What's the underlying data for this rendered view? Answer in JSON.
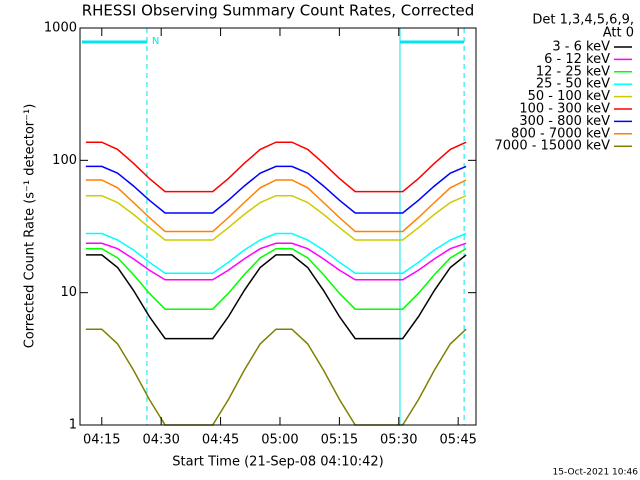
{
  "chart_data": {
    "type": "line",
    "title": "RHESSI Observing Summary Count Rates, Corrected",
    "xlabel": "Start Time (21-Sep-08 04:10:42)",
    "ylabel": "Corrected Count Rate (s⁻¹ detector⁻¹)",
    "legend_header": [
      "Det 1,3,4,5,6,9,",
      "Att 0"
    ],
    "legend_position": "outside-right",
    "timestamp": "15-Oct-2021 10:46",
    "log_y": true,
    "xlim": [
      9.5,
      109.5
    ],
    "ylim": [
      1,
      1000
    ],
    "xticks": [
      {
        "value": 15,
        "label": "04:15"
      },
      {
        "value": 30,
        "label": "04:30"
      },
      {
        "value": 45,
        "label": "04:45"
      },
      {
        "value": 60,
        "label": "05:00"
      },
      {
        "value": 75,
        "label": "05:15"
      },
      {
        "value": 90,
        "label": "05:30"
      },
      {
        "value": 105,
        "label": "05:45"
      }
    ],
    "yticks": [
      1,
      10,
      100,
      1000
    ],
    "night_intervals": [
      {
        "start": 10,
        "end": 26.4,
        "label": "N"
      },
      {
        "start": 90.3,
        "end": 106.5
      }
    ],
    "markers": [
      {
        "x": 26.4,
        "style": "dashed"
      },
      {
        "x": 90.3,
        "style": "solid"
      },
      {
        "x": 106.5,
        "style": "dashed"
      }
    ],
    "marker_color": "#00e5ee",
    "x": [
      11,
      15,
      19,
      23,
      27,
      31,
      35,
      39,
      43,
      47,
      51,
      55,
      59,
      63,
      67,
      71,
      75,
      79,
      83,
      87,
      91,
      95,
      99,
      103,
      107
    ],
    "series": [
      {
        "name": "3 - 6 keV",
        "color": "#000000",
        "values": [
          19.3,
          19.3,
          15.5,
          10.4,
          6.6,
          4.5,
          4.5,
          4.5,
          4.5,
          6.6,
          10.4,
          15.5,
          19.3,
          19.3,
          15.5,
          10.4,
          6.6,
          4.5,
          4.5,
          4.5,
          4.5,
          6.6,
          10.4,
          15.5,
          19.3
        ]
      },
      {
        "name": "6 - 12 keV",
        "color": "#ff00ff",
        "values": [
          23.6,
          23.6,
          21.5,
          18,
          14.8,
          12.5,
          12.5,
          12.5,
          12.5,
          14.8,
          18,
          21.5,
          23.6,
          23.6,
          21.5,
          18,
          14.8,
          12.5,
          12.5,
          12.5,
          12.5,
          14.8,
          18,
          21.5,
          23.6
        ]
      },
      {
        "name": "12 - 25 keV",
        "color": "#00ff00",
        "values": [
          21.5,
          21.5,
          18.3,
          13.7,
          9.9,
          7.5,
          7.5,
          7.5,
          7.5,
          9.9,
          13.7,
          18.3,
          21.5,
          21.5,
          18.3,
          13.7,
          9.9,
          7.5,
          7.5,
          7.5,
          7.5,
          9.9,
          13.7,
          18.3,
          21.5
        ]
      },
      {
        "name": "25 - 50 keV",
        "color": "#00ffff",
        "values": [
          28,
          28,
          25,
          21,
          17,
          14,
          14,
          14,
          14,
          17,
          21,
          25,
          28,
          28,
          25,
          21,
          17,
          14,
          14,
          14,
          14,
          17,
          21,
          25,
          28
        ]
      },
      {
        "name": "50 - 100 keV",
        "color": "#cccc00",
        "values": [
          54,
          54,
          48,
          39,
          31,
          25,
          25,
          25,
          25,
          31,
          39,
          48,
          54,
          54,
          48,
          39,
          31,
          25,
          25,
          25,
          25,
          31,
          39,
          48,
          54
        ]
      },
      {
        "name": "100 - 300 keV",
        "color": "#ff0000",
        "values": [
          137,
          137,
          121,
          95,
          73,
          58,
          58,
          58,
          58,
          73,
          95,
          121,
          137,
          137,
          121,
          95,
          73,
          58,
          58,
          58,
          58,
          73,
          95,
          121,
          137
        ]
      },
      {
        "name": "300 - 800 keV",
        "color": "#0000ff",
        "values": [
          90,
          90,
          80,
          64,
          50,
          40,
          40,
          40,
          40,
          50,
          64,
          80,
          90,
          90,
          80,
          64,
          50,
          40,
          40,
          40,
          40,
          50,
          64,
          80,
          90
        ]
      },
      {
        "name": "800 - 7000 keV",
        "color": "#ff8000",
        "values": [
          71,
          71,
          62,
          48,
          37,
          29,
          29,
          29,
          29,
          37,
          48,
          62,
          71,
          71,
          62,
          48,
          37,
          29,
          29,
          29,
          29,
          37,
          48,
          62,
          71
        ]
      },
      {
        "name": "7000 - 15000 keV",
        "color": "#808000",
        "values": [
          5.3,
          5.3,
          4.1,
          2.6,
          1.56,
          1,
          1,
          1,
          1,
          1.56,
          2.6,
          4.1,
          5.3,
          5.3,
          4.1,
          2.6,
          1.56,
          1,
          1,
          1,
          1,
          1.56,
          2.6,
          4.1,
          5.3
        ]
      }
    ]
  }
}
